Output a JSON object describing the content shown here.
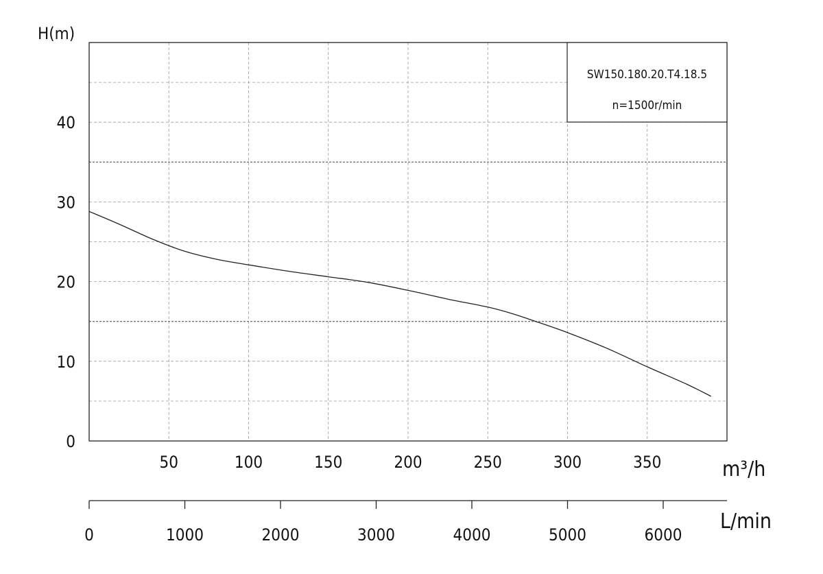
{
  "chart_data": {
    "type": "line",
    "legend": {
      "model": "SW150.180.20.T4.18.5",
      "speed": "n=1500r/min"
    },
    "ylabel": "H(m)",
    "xlabel": "m³/h",
    "secondary_xlabel": "L/min",
    "xlim": [
      0,
      400
    ],
    "ylim": [
      0,
      50
    ],
    "y_ticks": [
      0,
      10,
      20,
      30,
      40
    ],
    "y_ticklabels": [
      "0",
      "10",
      "20",
      "30",
      "40"
    ],
    "x_ticks": [
      50,
      100,
      150,
      200,
      250,
      300,
      350
    ],
    "x_ticklabels": [
      "50",
      "100",
      "150",
      "200",
      "250",
      "300",
      "350"
    ],
    "secondary_x_ticks": [
      0,
      1000,
      2000,
      3000,
      4000,
      5000,
      6000
    ],
    "secondary_x_ticklabels": [
      "0",
      "1000",
      "2000",
      "3000",
      "4000",
      "5000",
      "6000"
    ],
    "grid": true,
    "series": [
      {
        "x": [
          0,
          20,
          40,
          60,
          80,
          100,
          125,
          150,
          175,
          200,
          225,
          250,
          265,
          280,
          300,
          325,
          350,
          375,
          390
        ],
        "y": [
          28.8,
          27.1,
          25.3,
          23.8,
          22.8,
          22.1,
          21.3,
          20.6,
          19.9,
          18.9,
          17.8,
          16.8,
          16.0,
          15.0,
          13.6,
          11.6,
          9.3,
          7.1,
          5.6
        ]
      }
    ]
  }
}
